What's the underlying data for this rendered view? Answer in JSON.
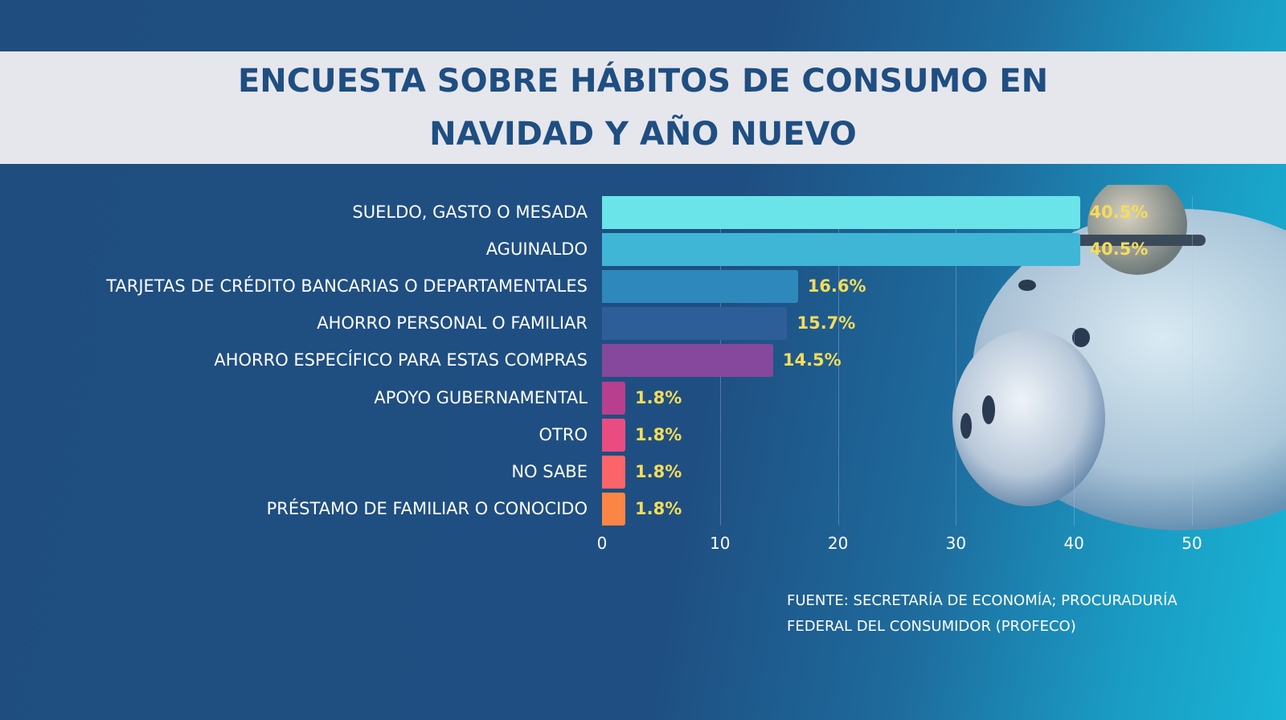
{
  "title_lines": [
    "ENCUESTA SOBRE HÁBITOS DE CONSUMO EN",
    "NAVIDAD Y AÑO NUEVO"
  ],
  "chart_data": {
    "type": "bar",
    "orientation": "horizontal",
    "title": "ENCUESTA SOBRE HÁBITOS DE CONSUMO EN NAVIDAD Y AÑO NUEVO",
    "categories": [
      "SUELDO, GASTO O MESADA",
      "AGUINALDO",
      "TARJETAS DE CRÉDITO BANCARIAS O DEPARTAMENTALES",
      "AHORRO PERSONAL O FAMILIAR",
      "AHORRO ESPECÍFICO PARA ESTAS COMPRAS",
      "APOYO GUBERNAMENTAL",
      "OTRO",
      "NO SABE",
      "PRÉSTAMO DE FAMILIAR O CONOCIDO"
    ],
    "values": [
      40.5,
      40.5,
      16.6,
      15.7,
      14.5,
      1.8,
      1.8,
      1.8,
      1.8
    ],
    "value_labels": [
      "40.5%",
      "40.5%",
      "16.6%",
      "15.7%",
      "14.5%",
      "1.8%",
      "1.8%",
      "1.8%",
      "1.8%"
    ],
    "colors": [
      "#6ae4e8",
      "#40b6d6",
      "#2e88bb",
      "#2d5e98",
      "#86489c",
      "#b83f8e",
      "#ea4c82",
      "#fb6468",
      "#fb8544"
    ],
    "xlim": [
      0,
      50
    ],
    "xticks": [
      "0",
      "10",
      "20",
      "30",
      "40",
      "50"
    ],
    "grid": true,
    "xlabel": "",
    "ylabel": ""
  },
  "source_lines": [
    "FUENTE: SECRETARÍA DE ECONOMÍA; PROCURADURÍA",
    "FEDERAL DEL CONSUMIDOR (PROFECO)"
  ]
}
